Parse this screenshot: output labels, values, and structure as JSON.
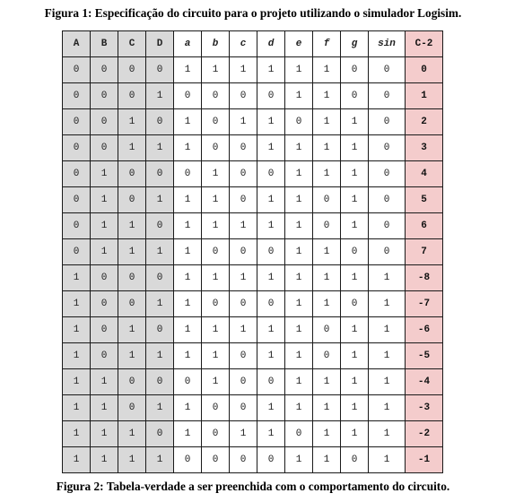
{
  "captions": {
    "top": "Figura 1: Especificação do circuito para o projeto utilizando o simulador Logisim.",
    "bottom": "Figura 2: Tabela-verdade a ser preenchida com o comportamento do circuito."
  },
  "colors": {
    "input_bg": "#d9d9d9",
    "segment_bg": "#ffffff",
    "output_bg": "#f4cccc",
    "border": "#1a1a1a"
  },
  "table": {
    "headers": [
      "A",
      "B",
      "C",
      "D",
      "a",
      "b",
      "c",
      "d",
      "e",
      "f",
      "g",
      "sin",
      "C-2"
    ],
    "rows": [
      [
        "0",
        "0",
        "0",
        "0",
        "1",
        "1",
        "1",
        "1",
        "1",
        "1",
        "0",
        "0",
        "0"
      ],
      [
        "0",
        "0",
        "0",
        "1",
        "0",
        "0",
        "0",
        "0",
        "1",
        "1",
        "0",
        "0",
        "1"
      ],
      [
        "0",
        "0",
        "1",
        "0",
        "1",
        "0",
        "1",
        "1",
        "0",
        "1",
        "1",
        "0",
        "2"
      ],
      [
        "0",
        "0",
        "1",
        "1",
        "1",
        "0",
        "0",
        "1",
        "1",
        "1",
        "1",
        "0",
        "3"
      ],
      [
        "0",
        "1",
        "0",
        "0",
        "0",
        "1",
        "0",
        "0",
        "1",
        "1",
        "1",
        "0",
        "4"
      ],
      [
        "0",
        "1",
        "0",
        "1",
        "1",
        "1",
        "0",
        "1",
        "1",
        "0",
        "1",
        "0",
        "5"
      ],
      [
        "0",
        "1",
        "1",
        "0",
        "1",
        "1",
        "1",
        "1",
        "1",
        "0",
        "1",
        "0",
        "6"
      ],
      [
        "0",
        "1",
        "1",
        "1",
        "1",
        "0",
        "0",
        "0",
        "1",
        "1",
        "0",
        "0",
        "7"
      ],
      [
        "1",
        "0",
        "0",
        "0",
        "1",
        "1",
        "1",
        "1",
        "1",
        "1",
        "1",
        "1",
        "-8"
      ],
      [
        "1",
        "0",
        "0",
        "1",
        "1",
        "0",
        "0",
        "0",
        "1",
        "1",
        "0",
        "1",
        "-7"
      ],
      [
        "1",
        "0",
        "1",
        "0",
        "1",
        "1",
        "1",
        "1",
        "1",
        "0",
        "1",
        "1",
        "-6"
      ],
      [
        "1",
        "0",
        "1",
        "1",
        "1",
        "1",
        "0",
        "1",
        "1",
        "0",
        "1",
        "1",
        "-5"
      ],
      [
        "1",
        "1",
        "0",
        "0",
        "0",
        "1",
        "0",
        "0",
        "1",
        "1",
        "1",
        "1",
        "-4"
      ],
      [
        "1",
        "1",
        "0",
        "1",
        "1",
        "0",
        "0",
        "1",
        "1",
        "1",
        "1",
        "1",
        "-3"
      ],
      [
        "1",
        "1",
        "1",
        "0",
        "1",
        "0",
        "1",
        "1",
        "0",
        "1",
        "1",
        "1",
        "-2"
      ],
      [
        "1",
        "1",
        "1",
        "1",
        "0",
        "0",
        "0",
        "0",
        "1",
        "1",
        "0",
        "1",
        "-1"
      ]
    ]
  }
}
